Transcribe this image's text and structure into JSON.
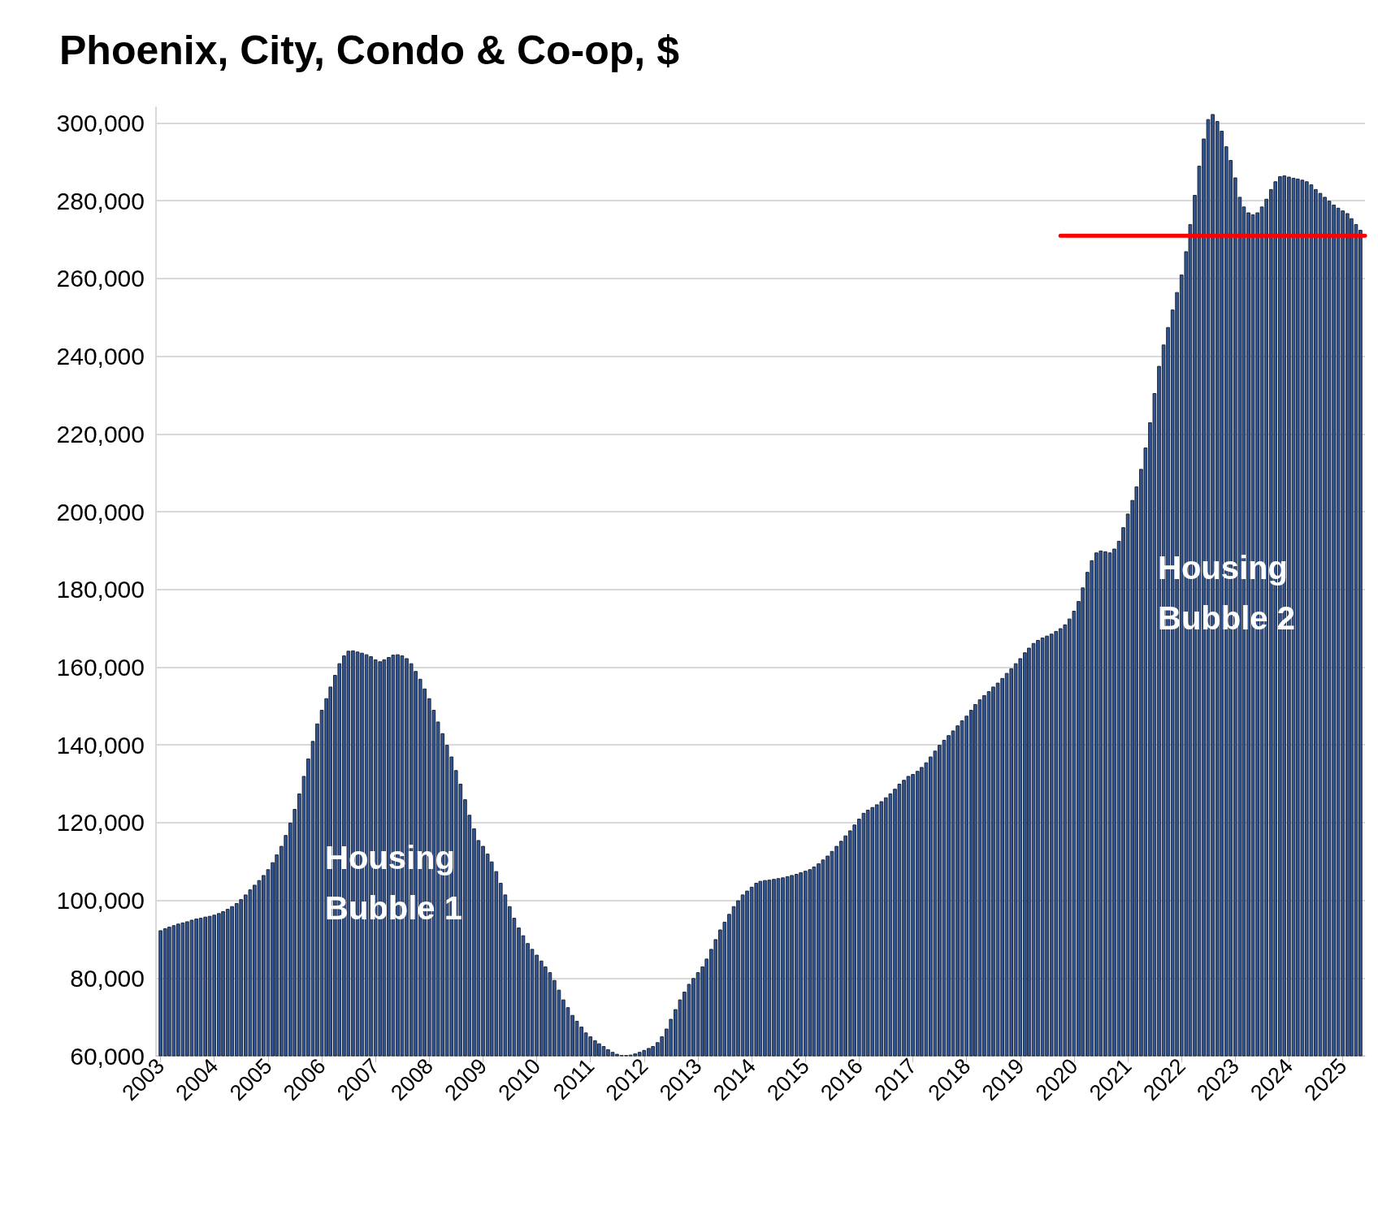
{
  "chart_data": {
    "type": "bar",
    "title": "Phoenix, City, Condo & Co-op, $",
    "annotations": [
      "Housing Bubble 1",
      "Housing Bubble 2"
    ],
    "xlim": [
      "2002-12",
      "2025-06"
    ],
    "xticks": [
      "2003",
      "2004",
      "2005",
      "2006",
      "2007",
      "2008",
      "2009",
      "2010",
      "2011",
      "2012",
      "2013",
      "2014",
      "2015",
      "2016",
      "2017",
      "2018",
      "2019",
      "2020",
      "2021",
      "2022",
      "2023",
      "2024",
      "2025"
    ],
    "ylim": [
      60000,
      304000
    ],
    "yticks": [
      {
        "value": 60000,
        "label": "60,000"
      },
      {
        "value": 80000,
        "label": "80,000"
      },
      {
        "value": 100000,
        "label": "100,000"
      },
      {
        "value": 120000,
        "label": "120,000"
      },
      {
        "value": 140000,
        "label": "140,000"
      },
      {
        "value": 160000,
        "label": "160,000"
      },
      {
        "value": 180000,
        "label": "180,000"
      },
      {
        "value": 200000,
        "label": "200,000"
      },
      {
        "value": 220000,
        "label": "220,000"
      },
      {
        "value": 240000,
        "label": "240,000"
      },
      {
        "value": 260000,
        "label": "260,000"
      },
      {
        "value": 280000,
        "label": "280,000"
      },
      {
        "value": 300000,
        "label": "300,000"
      }
    ],
    "grid": "y",
    "marker": "none",
    "series": [
      {
        "color": "#2f5597",
        "x": [
          "2003-01",
          "2003-02",
          "2003-03",
          "2003-04",
          "2003-05",
          "2003-06",
          "2003-07",
          "2003-08",
          "2003-09",
          "2003-10",
          "2003-11",
          "2003-12",
          "2004-01",
          "2004-02",
          "2004-03",
          "2004-04",
          "2004-05",
          "2004-06",
          "2004-07",
          "2004-08",
          "2004-09",
          "2004-10",
          "2004-11",
          "2004-12",
          "2005-01",
          "2005-02",
          "2005-03",
          "2005-04",
          "2005-05",
          "2005-06",
          "2005-07",
          "2005-08",
          "2005-09",
          "2005-10",
          "2005-11",
          "2005-12",
          "2006-01",
          "2006-02",
          "2006-03",
          "2006-04",
          "2006-05",
          "2006-06",
          "2006-07",
          "2006-08",
          "2006-09",
          "2006-10",
          "2006-11",
          "2006-12",
          "2007-01",
          "2007-02",
          "2007-03",
          "2007-04",
          "2007-05",
          "2007-06",
          "2007-07",
          "2007-08",
          "2007-09",
          "2007-10",
          "2007-11",
          "2007-12",
          "2008-01",
          "2008-02",
          "2008-03",
          "2008-04",
          "2008-05",
          "2008-06",
          "2008-07",
          "2008-08",
          "2008-09",
          "2008-10",
          "2008-11",
          "2008-12",
          "2009-01",
          "2009-02",
          "2009-03",
          "2009-04",
          "2009-05",
          "2009-06",
          "2009-07",
          "2009-08",
          "2009-09",
          "2009-10",
          "2009-11",
          "2009-12",
          "2010-01",
          "2010-02",
          "2010-03",
          "2010-04",
          "2010-05",
          "2010-06",
          "2010-07",
          "2010-08",
          "2010-09",
          "2010-10",
          "2010-11",
          "2010-12",
          "2011-01",
          "2011-02",
          "2011-03",
          "2011-04",
          "2011-05",
          "2011-06",
          "2011-07",
          "2011-08",
          "2011-09",
          "2011-10",
          "2011-11",
          "2011-12",
          "2012-01",
          "2012-02",
          "2012-03",
          "2012-04",
          "2012-05",
          "2012-06",
          "2012-07",
          "2012-08",
          "2012-09",
          "2012-10",
          "2012-11",
          "2012-12",
          "2013-01",
          "2013-02",
          "2013-03",
          "2013-04",
          "2013-05",
          "2013-06",
          "2013-07",
          "2013-08",
          "2013-09",
          "2013-10",
          "2013-11",
          "2013-12",
          "2014-01",
          "2014-02",
          "2014-03",
          "2014-04",
          "2014-05",
          "2014-06",
          "2014-07",
          "2014-08",
          "2014-09",
          "2014-10",
          "2014-11",
          "2014-12",
          "2015-01",
          "2015-02",
          "2015-03",
          "2015-04",
          "2015-05",
          "2015-06",
          "2015-07",
          "2015-08",
          "2015-09",
          "2015-10",
          "2015-11",
          "2015-12",
          "2016-01",
          "2016-02",
          "2016-03",
          "2016-04",
          "2016-05",
          "2016-06",
          "2016-07",
          "2016-08",
          "2016-09",
          "2016-10",
          "2016-11",
          "2016-12",
          "2017-01",
          "2017-02",
          "2017-03",
          "2017-04",
          "2017-05",
          "2017-06",
          "2017-07",
          "2017-08",
          "2017-09",
          "2017-10",
          "2017-11",
          "2017-12",
          "2018-01",
          "2018-02",
          "2018-03",
          "2018-04",
          "2018-05",
          "2018-06",
          "2018-07",
          "2018-08",
          "2018-09",
          "2018-10",
          "2018-11",
          "2018-12",
          "2019-01",
          "2019-02",
          "2019-03",
          "2019-04",
          "2019-05",
          "2019-06",
          "2019-07",
          "2019-08",
          "2019-09",
          "2019-10",
          "2019-11",
          "2019-12",
          "2020-01",
          "2020-02",
          "2020-03",
          "2020-04",
          "2020-05",
          "2020-06",
          "2020-07",
          "2020-08",
          "2020-09",
          "2020-10",
          "2020-11",
          "2020-12",
          "2021-01",
          "2021-02",
          "2021-03",
          "2021-04",
          "2021-05",
          "2021-06",
          "2021-07",
          "2021-08",
          "2021-09",
          "2021-10",
          "2021-11",
          "2021-12",
          "2022-01",
          "2022-02",
          "2022-03",
          "2022-04",
          "2022-05",
          "2022-06",
          "2022-07",
          "2022-08",
          "2022-09",
          "2022-10",
          "2022-11",
          "2022-12",
          "2023-01",
          "2023-02",
          "2023-03",
          "2023-04",
          "2023-05",
          "2023-06",
          "2023-07",
          "2023-08",
          "2023-09",
          "2023-10",
          "2023-11",
          "2023-12",
          "2024-01",
          "2024-02",
          "2024-03",
          "2024-04",
          "2024-05",
          "2024-06",
          "2024-07",
          "2024-08",
          "2024-09",
          "2024-10",
          "2024-11",
          "2024-12",
          "2025-01",
          "2025-02",
          "2025-03",
          "2025-04",
          "2025-05"
        ],
        "values": [
          92300,
          92800,
          93200,
          93600,
          94000,
          94300,
          94600,
          95000,
          95300,
          95500,
          95800,
          96000,
          96300,
          96700,
          97200,
          97800,
          98500,
          99300,
          100300,
          101500,
          102800,
          104000,
          105200,
          106500,
          108000,
          109800,
          111800,
          114000,
          116800,
          120000,
          123500,
          127500,
          132000,
          136500,
          141000,
          145500,
          149000,
          152000,
          155000,
          158000,
          161000,
          163000,
          164200,
          164300,
          164000,
          163700,
          163300,
          162800,
          162000,
          161500,
          162000,
          162600,
          163200,
          163300,
          163000,
          162300,
          161000,
          159000,
          157000,
          154500,
          152000,
          149000,
          146000,
          143000,
          140000,
          137000,
          133500,
          130000,
          126000,
          122000,
          118500,
          115500,
          114000,
          112000,
          110000,
          107500,
          104500,
          101500,
          98500,
          95500,
          93000,
          91000,
          89000,
          87500,
          86000,
          84500,
          83000,
          81500,
          79500,
          77000,
          74500,
          72500,
          70500,
          69000,
          67500,
          66000,
          65000,
          64000,
          63200,
          62500,
          61700,
          61000,
          60500,
          60200,
          60200,
          60300,
          60600,
          61000,
          61500,
          62000,
          62500,
          63500,
          65000,
          67000,
          69500,
          72000,
          74500,
          76500,
          78500,
          80000,
          81500,
          83000,
          85000,
          87500,
          90000,
          92500,
          94500,
          96500,
          98500,
          100000,
          101500,
          102500,
          103500,
          104500,
          105000,
          105200,
          105300,
          105500,
          105700,
          105900,
          106200,
          106500,
          106800,
          107200,
          107600,
          108000,
          108700,
          109500,
          110500,
          111500,
          112700,
          114000,
          115300,
          116700,
          118000,
          119500,
          121000,
          122500,
          123300,
          124000,
          124700,
          125500,
          126500,
          127500,
          128700,
          130000,
          131000,
          132000,
          132500,
          133300,
          134300,
          135500,
          137000,
          138500,
          140000,
          141300,
          142500,
          143700,
          145000,
          146300,
          147500,
          149000,
          150500,
          151700,
          152800,
          153800,
          155000,
          156000,
          157200,
          158500,
          159700,
          161000,
          162300,
          163800,
          165000,
          166200,
          167000,
          167600,
          168100,
          168600,
          169300,
          170000,
          171000,
          172500,
          174500,
          177000,
          180500,
          184500,
          187500,
          189500,
          190000,
          189800,
          189500,
          190500,
          192500,
          196000,
          199500,
          203000,
          206500,
          211000,
          216500,
          223000,
          230500,
          237500,
          243000,
          247500,
          252000,
          256500,
          261000,
          267000,
          274000,
          281500,
          289000,
          296000,
          301000,
          302300,
          300500,
          298000,
          294000,
          290500,
          286000,
          281000,
          278500,
          277000,
          276500,
          277000,
          278500,
          280500,
          283000,
          285000,
          286300,
          286500,
          286200,
          285900,
          285700,
          285400,
          285000,
          284200,
          283000,
          282000,
          281000,
          280000,
          279000,
          278200,
          277500,
          276800,
          275500,
          274000,
          272500
        ]
      },
      {
        "type": "line",
        "color": "#ff0000",
        "x": [
          "2019-10",
          "2025-06"
        ],
        "values": [
          271000,
          271000
        ]
      }
    ]
  }
}
